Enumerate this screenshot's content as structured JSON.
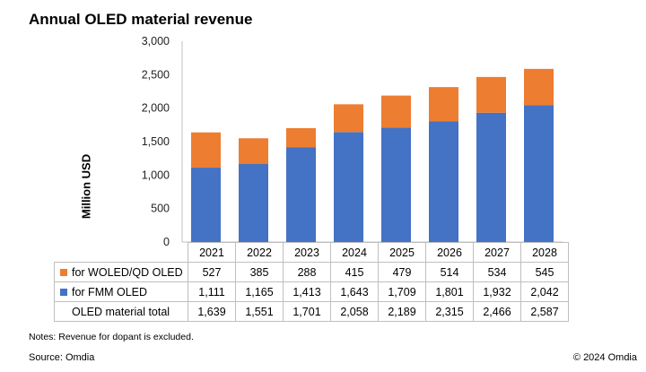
{
  "title": "Annual OLED material revenue",
  "notes": "Notes: Revenue for dopant is excluded.",
  "source": "Source: Omdia",
  "copyright": "© 2024 Omdia",
  "chart_data": {
    "type": "bar",
    "stacked": true,
    "title": "Annual OLED material revenue",
    "ylabel": "Million  USD",
    "ylim": [
      0,
      3000
    ],
    "yticks": [
      0,
      500,
      1000,
      1500,
      2000,
      2500,
      3000
    ],
    "ytick_labels": [
      "0",
      "500",
      "1,000",
      "1,500",
      "2,000",
      "2,500",
      "3,000"
    ],
    "categories": [
      "2021",
      "2022",
      "2023",
      "2024",
      "2025",
      "2026",
      "2027",
      "2028"
    ],
    "series": [
      {
        "name": "for FMM OLED",
        "color": "#4472c4",
        "values": [
          1111,
          1165,
          1413,
          1643,
          1709,
          1801,
          1932,
          2042
        ],
        "labels": [
          "1,111",
          "1,165",
          "1,413",
          "1,643",
          "1,709",
          "1,801",
          "1,932",
          "2,042"
        ]
      },
      {
        "name": "for WOLED/QD OLED",
        "color": "#ed7d31",
        "values": [
          527,
          385,
          288,
          415,
          479,
          514,
          534,
          545
        ],
        "labels": [
          "527",
          "385",
          "288",
          "415",
          "479",
          "514",
          "534",
          "545"
        ]
      }
    ],
    "total": {
      "name": "OLED material total",
      "values": [
        1639,
        1551,
        1701,
        2058,
        2189,
        2315,
        2466,
        2587
      ],
      "labels": [
        "1,639",
        "1,551",
        "1,701",
        "2,058",
        "2,189",
        "2,315",
        "2,466",
        "2,587"
      ]
    },
    "grid": false,
    "legend": "data-table"
  }
}
